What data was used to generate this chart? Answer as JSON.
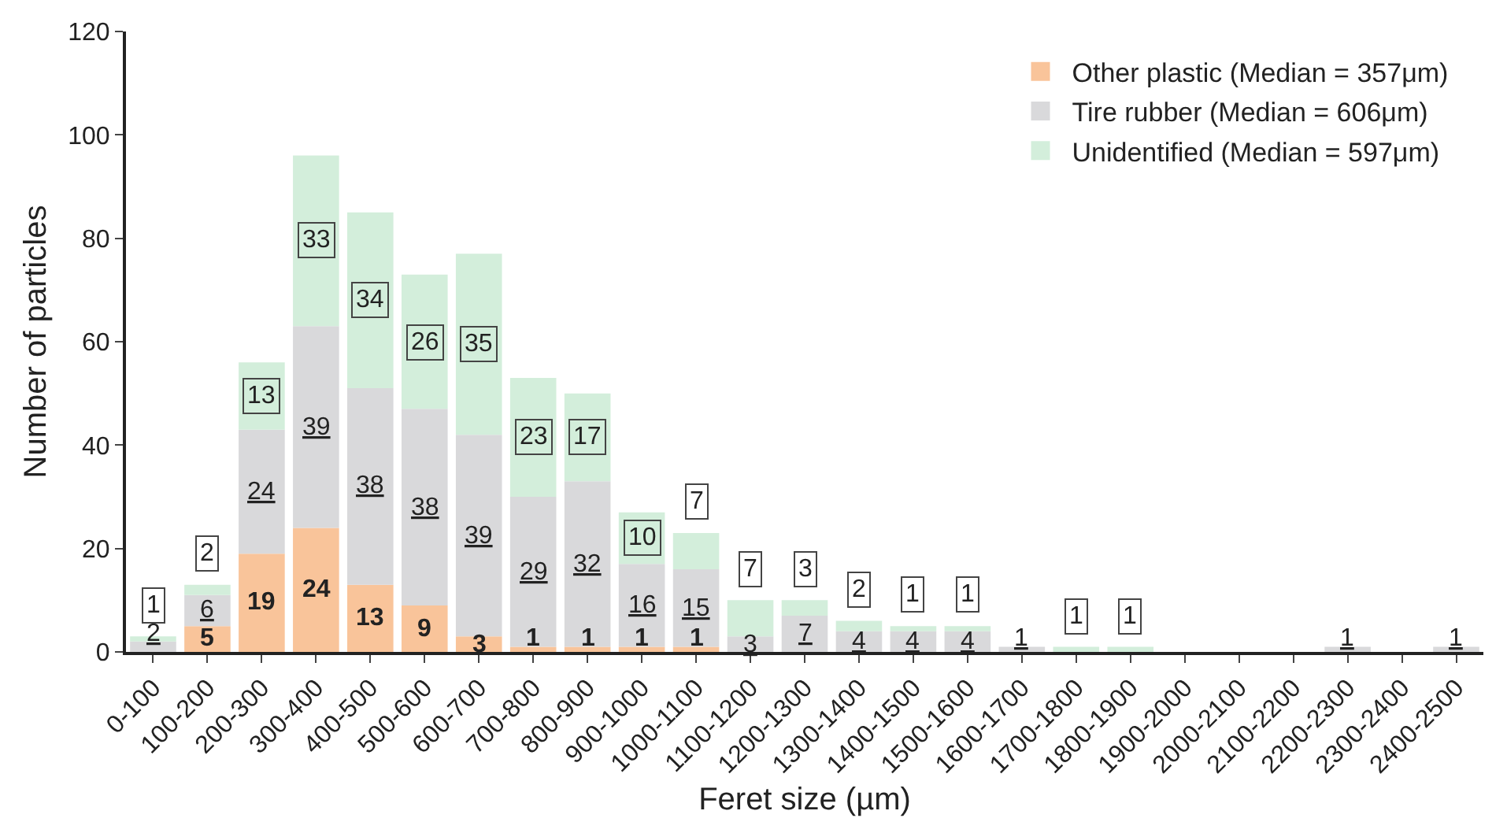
{
  "chart_data": {
    "type": "bar",
    "stacked": true,
    "xlabel": "Feret size (µm)",
    "ylabel": "Number of particles",
    "categories": [
      "0-100",
      "100-200",
      "200-300",
      "300-400",
      "400-500",
      "500-600",
      "600-700",
      "700-800",
      "800-900",
      "900-1000",
      "1000-1100",
      "1100-1200",
      "1200-1300",
      "1300-1400",
      "1400-1500",
      "1500-1600",
      "1600-1700",
      "1700-1800",
      "1800-1900",
      "1900-2000",
      "2000-2100",
      "2100-2200",
      "2200-2300",
      "2300-2400",
      "2400-2500"
    ],
    "series": [
      {
        "name": "Other plastic (Median = 357μm)",
        "color": "#f9c49a",
        "values": [
          0,
          5,
          19,
          24,
          13,
          9,
          3,
          1,
          1,
          1,
          1,
          0,
          0,
          0,
          0,
          0,
          0,
          0,
          0,
          0,
          0,
          0,
          0,
          0,
          0
        ],
        "value_labels": [
          null,
          "5",
          "19",
          "24",
          "13",
          "9",
          "3",
          "1",
          "1",
          "1",
          "1",
          null,
          null,
          null,
          null,
          null,
          null,
          null,
          null,
          null,
          null,
          null,
          null,
          null,
          null
        ]
      },
      {
        "name": "Tire rubber (Median = 606μm)",
        "color": "#d9d9db",
        "values": [
          2,
          6,
          24,
          39,
          38,
          38,
          39,
          29,
          32,
          16,
          15,
          3,
          7,
          4,
          4,
          4,
          1,
          0,
          0,
          0,
          0,
          0,
          1,
          0,
          1
        ],
        "value_labels": [
          "2",
          "6",
          "24",
          "39",
          "38",
          "38",
          "39",
          "29",
          "32",
          "16",
          "15",
          "3",
          "7",
          "4",
          "4",
          "4",
          "1",
          null,
          null,
          null,
          null,
          null,
          "1",
          null,
          "1"
        ]
      },
      {
        "name": "Unidentified (Median = 597μm)",
        "color": "#d3eedb",
        "values": [
          1,
          2,
          13,
          33,
          34,
          26,
          35,
          23,
          17,
          10,
          7,
          7,
          3,
          2,
          1,
          1,
          0,
          1,
          1,
          0,
          0,
          0,
          0,
          0,
          0
        ],
        "value_labels": [
          "1",
          "2",
          "13",
          "33",
          "34",
          "26",
          "35",
          "23",
          "17",
          "10",
          "7",
          "7",
          "3",
          "2",
          "1",
          "1",
          null,
          "1",
          "1",
          null,
          null,
          null,
          null,
          null,
          null
        ]
      }
    ],
    "ylim": [
      0,
      120
    ],
    "yticks": [
      0,
      20,
      40,
      60,
      80,
      100,
      120
    ],
    "grid": false,
    "legend": "top right"
  }
}
